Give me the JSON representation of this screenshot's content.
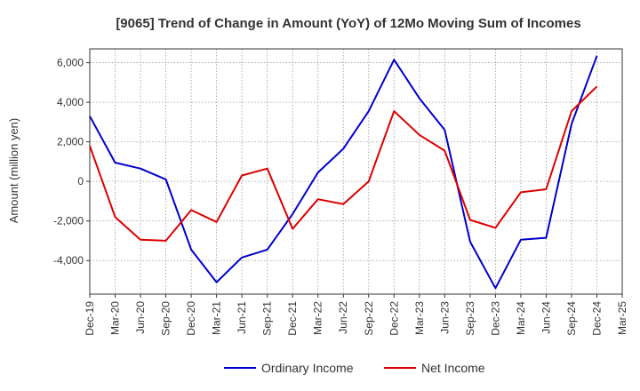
{
  "chart_data": {
    "type": "line",
    "title": "[9065]  Trend of Change in Amount (YoY) of 12Mo Moving Sum of Incomes",
    "xlabel": "",
    "ylabel": "Amount (million yen)",
    "categories": [
      "Dec-19",
      "Mar-20",
      "Jun-20",
      "Sep-20",
      "Dec-20",
      "Mar-21",
      "Jun-21",
      "Sep-21",
      "Dec-21",
      "Mar-22",
      "Jun-22",
      "Sep-22",
      "Dec-22",
      "Mar-23",
      "Jun-23",
      "Sep-23",
      "Dec-23",
      "Mar-24",
      "Jun-24",
      "Sep-24",
      "Dec-24",
      "Mar-25"
    ],
    "ylim": [
      -5700,
      6700
    ],
    "yticks": [
      -4000,
      -2000,
      0,
      2000,
      4000,
      6000
    ],
    "ytick_labels": [
      "-4,000",
      "-2,000",
      "0",
      "2,000",
      "4,000",
      "6,000"
    ],
    "grid": true,
    "legend_position": "bottom",
    "series": [
      {
        "name": "Ordinary Income",
        "color": "#0000cc",
        "values": [
          3300,
          950,
          650,
          100,
          -3450,
          -5100,
          -3850,
          -3450,
          -1650,
          450,
          1650,
          3550,
          6150,
          4200,
          2600,
          -3050,
          -5400,
          -2950,
          -2850,
          2900,
          6350,
          null
        ]
      },
      {
        "name": "Net Income",
        "color": "#dd0000",
        "values": [
          1800,
          -1800,
          -2950,
          -3000,
          -1450,
          -2050,
          300,
          650,
          -2400,
          -900,
          -1150,
          0,
          3550,
          2350,
          1550,
          -1950,
          -2350,
          -550,
          -400,
          3550,
          4800,
          null
        ]
      }
    ]
  }
}
